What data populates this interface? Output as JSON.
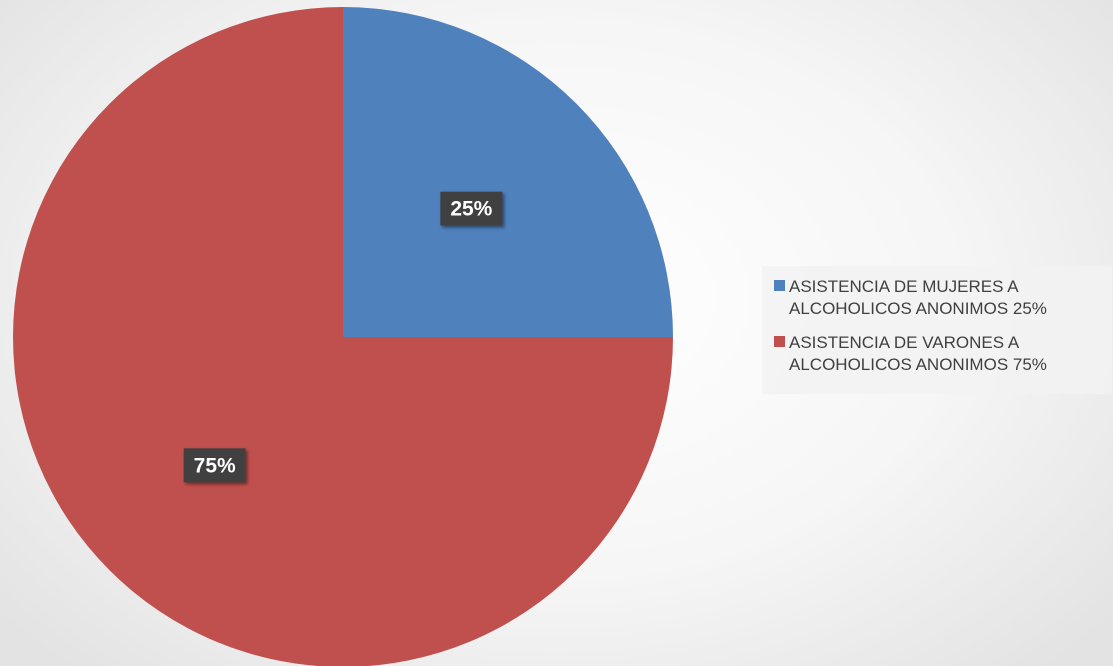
{
  "chart_data": {
    "type": "pie",
    "title": "",
    "slices": [
      {
        "label": "ASISTENCIA DE MUJERES A ALCOHOLICOS ANONIMOS 25%",
        "value": 25,
        "data_label": "25%",
        "color": "#4f81bd"
      },
      {
        "label": "ASISTENCIA DE VARONES A ALCOHOLICOS ANONIMOS 75%",
        "value": 75,
        "data_label": "75%",
        "color": "#c0504d"
      }
    ],
    "start_angle": "12 o'clock",
    "direction": "clockwise",
    "legend": {
      "position": "right"
    },
    "data_label_style": {
      "background": "#404040",
      "text_color": "#ffffff"
    }
  }
}
